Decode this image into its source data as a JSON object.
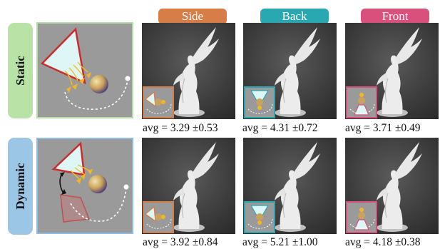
{
  "columns": [
    {
      "label": "Side",
      "color": "#d67d48"
    },
    {
      "label": "Back",
      "color": "#2aa8b2"
    },
    {
      "label": "Front",
      "color": "#d9507c"
    }
  ],
  "rows": [
    {
      "label": "Static",
      "color": "#b9e2a6",
      "diagram_border": "#b8dca8",
      "scores": [
        "avg = 3.29 ±0.53",
        "avg = 4.31 ±0.72",
        "avg = 3.71 ±0.49"
      ]
    },
    {
      "label": "Dynamic",
      "color": "#9cc6e6",
      "diagram_border": "#8fbde0",
      "scores": [
        "avg = 3.92 ±0.84",
        "avg = 5.21 ±1.00",
        "avg = 4.18 ±0.38"
      ]
    }
  ],
  "icons": [
    "light-panel-icon",
    "sphere-icon",
    "camera-path-icon",
    "rotate-arrow-icon",
    "statue-photo"
  ]
}
